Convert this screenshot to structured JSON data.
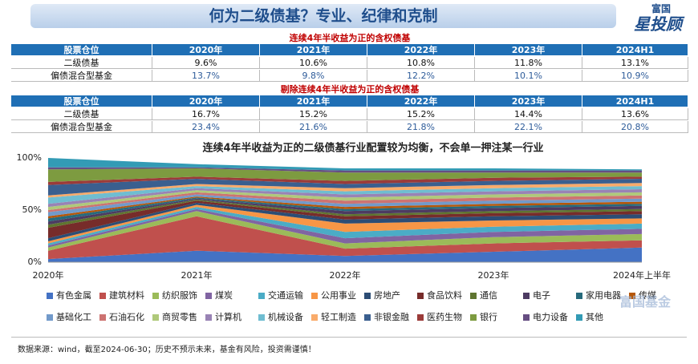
{
  "header": {
    "title": "何为二级债基？专业、纪律和克制",
    "logo_top": "富国",
    "logo_main": "星投顾"
  },
  "tables": [
    {
      "title": "连续4年半收益为正的含权债基",
      "header": [
        "股票仓位",
        "2020年",
        "2021年",
        "2022年",
        "2023年",
        "2024H1"
      ],
      "rows": [
        [
          "二级债基",
          "9.6%",
          "10.6%",
          "10.8%",
          "11.8%",
          "13.1%"
        ],
        [
          "偏债混合型基金",
          "13.7%",
          "9.8%",
          "12.2%",
          "10.1%",
          "10.9%"
        ]
      ]
    },
    {
      "title": "剔除连续4年半收益为正的含权债基",
      "header": [
        "股票仓位",
        "2020年",
        "2021年",
        "2022年",
        "2023年",
        "2024H1"
      ],
      "rows": [
        [
          "二级债基",
          "16.7%",
          "15.2%",
          "15.2%",
          "14.4%",
          "13.6%"
        ],
        [
          "偏债混合型基金",
          "23.4%",
          "21.6%",
          "21.8%",
          "22.1%",
          "20.8%"
        ]
      ]
    }
  ],
  "chart_data": {
    "type": "stacked_area",
    "title": "连续4年半收益为正的二级债基行业配置较为均衡，不会单一押注某一行业",
    "categories": [
      "2020年",
      "2021年",
      "2022年",
      "2023年",
      "2024年上半年"
    ],
    "ylim": [
      0,
      100
    ],
    "yticks": [
      {
        "value": 0,
        "label": "0%"
      },
      {
        "value": 50,
        "label": "50%"
      },
      {
        "value": 100,
        "label": "100%"
      }
    ],
    "series": [
      {
        "name": "有色金属",
        "color": "#4472c4",
        "values": [
          3,
          11,
          6,
          10,
          14
        ]
      },
      {
        "name": "建筑材料",
        "color": "#c0504d",
        "values": [
          8,
          33,
          7,
          8,
          7
        ]
      },
      {
        "name": "纺织服饰",
        "color": "#9bbb59",
        "values": [
          3,
          5,
          5,
          6,
          6
        ]
      },
      {
        "name": "煤炭",
        "color": "#8064a2",
        "values": [
          2,
          2,
          5,
          5,
          5
        ]
      },
      {
        "name": "交通运输",
        "color": "#4bacc6",
        "values": [
          2,
          2,
          6,
          5,
          5
        ]
      },
      {
        "name": "公用事业",
        "color": "#f79646",
        "values": [
          2,
          2,
          8,
          6,
          5
        ]
      },
      {
        "name": "房地产",
        "color": "#2c4d75",
        "values": [
          3,
          2,
          4,
          4,
          4
        ]
      },
      {
        "name": "食品饮料",
        "color": "#772c2a",
        "values": [
          10,
          2,
          3,
          3,
          3
        ]
      },
      {
        "name": "通信",
        "color": "#5f7530",
        "values": [
          3,
          1,
          2,
          2,
          2
        ]
      },
      {
        "name": "电子",
        "color": "#4d3b62",
        "values": [
          3,
          1,
          3,
          3,
          3
        ]
      },
      {
        "name": "家用电器",
        "color": "#276a7c",
        "values": [
          3,
          1,
          2,
          2,
          2
        ]
      },
      {
        "name": "传媒",
        "color": "#b65708",
        "values": [
          2,
          1,
          2,
          2,
          2
        ]
      },
      {
        "name": "基础化工",
        "color": "#729aca",
        "values": [
          4,
          2,
          3,
          3,
          3
        ]
      },
      {
        "name": "石油石化",
        "color": "#cd7371",
        "values": [
          2,
          2,
          3,
          3,
          3
        ]
      },
      {
        "name": "商贸零售",
        "color": "#afc97a",
        "values": [
          3,
          2,
          3,
          3,
          3
        ]
      },
      {
        "name": "计算机",
        "color": "#9983b5",
        "values": [
          3,
          2,
          3,
          3,
          3
        ]
      },
      {
        "name": "机械设备",
        "color": "#6fbdd1",
        "values": [
          6,
          2,
          3,
          3,
          3
        ]
      },
      {
        "name": "轻工制造",
        "color": "#f9ab6b",
        "values": [
          2,
          2,
          3,
          3,
          3
        ]
      },
      {
        "name": "非银金融",
        "color": "#3a5f8f",
        "values": [
          10,
          5,
          4,
          4,
          4
        ]
      },
      {
        "name": "医药生物",
        "color": "#9b3b39",
        "values": [
          3,
          2,
          3,
          3,
          2
        ]
      },
      {
        "name": "银行",
        "color": "#7d9b40",
        "values": [
          12,
          8,
          8,
          5,
          4
        ]
      },
      {
        "name": "电力设备",
        "color": "#664e82",
        "values": [
          2,
          1,
          2,
          2,
          2
        ]
      },
      {
        "name": "其他",
        "color": "#339bb5",
        "values": [
          9,
          3,
          2,
          2,
          1
        ]
      }
    ]
  },
  "footer": {
    "source": "数据来源：wind，截至2024-06-30；历史不预示未来，基金有风险，投资需谨慎！",
    "watermark": "富国基金"
  }
}
